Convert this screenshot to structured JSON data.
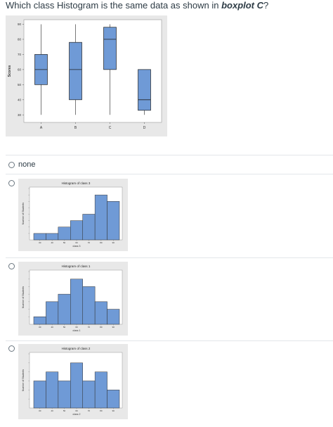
{
  "question": {
    "prefix": "Which class Histogram is the same data as shown in ",
    "emphasis": "boxplot C",
    "suffix": "?"
  },
  "colors": {
    "box_fill": "#6f9ad6",
    "box_stroke": "#222222",
    "panel_bg": "#e8e8e8"
  },
  "chart_data": [
    {
      "type": "boxplot",
      "ylabel": "Scores",
      "ylim": [
        25,
        93
      ],
      "yticks": [
        "90",
        "80",
        "70",
        "60",
        "50",
        "40",
        "30"
      ],
      "categories": [
        "A",
        "B",
        "C",
        "D"
      ],
      "boxes": [
        {
          "name": "A",
          "min": 30,
          "q1": 50,
          "median": 60,
          "q3": 70,
          "max": 90
        },
        {
          "name": "B",
          "min": 30,
          "q1": 40,
          "median": 60,
          "q3": 78,
          "max": 90
        },
        {
          "name": "C",
          "min": 30,
          "q1": 60,
          "median": 80,
          "q3": 88,
          "max": 90
        },
        {
          "name": "D",
          "min": 30,
          "q1": 33,
          "median": 40,
          "q3": 60,
          "max": 60
        }
      ],
      "grid": false
    },
    {
      "type": "bar",
      "title": "Histogram of class 3",
      "xlabel": "class 3",
      "ylabel": "Number of Students",
      "values": [
        1,
        1,
        2,
        3,
        4,
        7,
        6
      ],
      "xticks": [
        "30",
        "40",
        "50",
        "60",
        "70",
        "80",
        "90"
      ],
      "ymax": 8
    },
    {
      "type": "bar",
      "title": "Histogram of class 1",
      "xlabel": "class 1",
      "ylabel": "Number of Students",
      "values": [
        1,
        3,
        4,
        6,
        5,
        3,
        2
      ],
      "xticks": [
        "30",
        "40",
        "50",
        "60",
        "70",
        "80",
        "90"
      ],
      "ymax": 7
    },
    {
      "type": "bar",
      "title": "Histogram of class 2",
      "xlabel": "class 2",
      "ylabel": "Number of Students",
      "values": [
        3,
        4,
        3,
        5,
        3,
        4,
        2
      ],
      "xticks": [
        "30",
        "40",
        "50",
        "60",
        "70",
        "80",
        "90"
      ],
      "ymax": 6
    }
  ],
  "options": [
    {
      "label": "none"
    },
    {
      "label": ""
    },
    {
      "label": ""
    },
    {
      "label": ""
    }
  ]
}
